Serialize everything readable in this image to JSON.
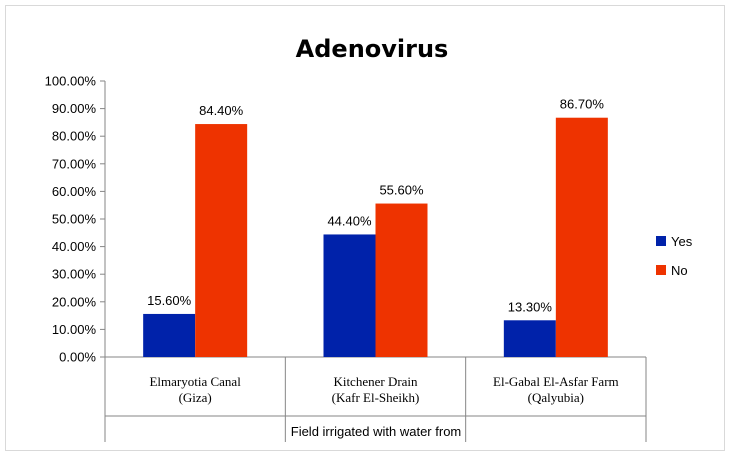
{
  "chart_data": {
    "type": "bar",
    "title": "Adenovirus",
    "categories": [
      [
        "Elmaryotia Canal",
        "(Giza)"
      ],
      [
        "Kitchener Drain",
        "(Kafr El-Sheikh)"
      ],
      [
        "El-Gabal El-Asfar Farm",
        "(Qalyubia)"
      ]
    ],
    "series": [
      {
        "name": "Yes",
        "color": "#0022aa",
        "values": [
          15.6,
          44.4,
          13.3
        ],
        "labels": [
          "15.60%",
          "44.40%",
          "13.30%"
        ]
      },
      {
        "name": "No",
        "color": "#ee3300",
        "values": [
          84.4,
          55.6,
          86.7
        ],
        "labels": [
          "84.40%",
          "55.60%",
          "86.70%"
        ]
      }
    ],
    "xlabel": "Field irrigated with water from",
    "ylabel": "",
    "ylim": [
      0,
      100
    ],
    "yticks": [
      "0.00%",
      "10.00%",
      "20.00%",
      "30.00%",
      "40.00%",
      "50.00%",
      "60.00%",
      "70.00%",
      "80.00%",
      "90.00%",
      "100.00%"
    ],
    "grid": false,
    "legend": "right"
  }
}
